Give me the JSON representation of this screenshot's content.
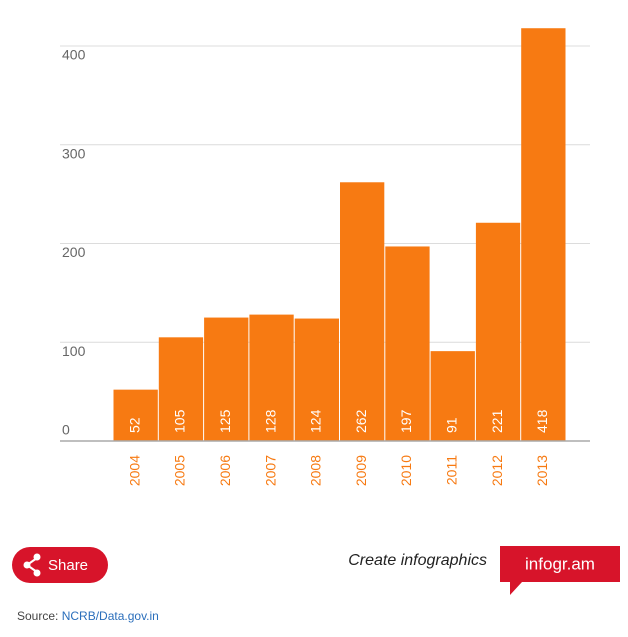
{
  "chart_data": {
    "type": "bar",
    "categories": [
      "2004",
      "2005",
      "2006",
      "2007",
      "2008",
      "2009",
      "2010",
      "2011",
      "2012",
      "2013"
    ],
    "values": [
      52,
      105,
      125,
      128,
      124,
      262,
      197,
      91,
      221,
      418
    ],
    "color": "#f77a12",
    "ylim": [
      0,
      440
    ],
    "yticks": [
      0,
      100,
      200,
      300,
      400
    ],
    "grid": true
  },
  "footer": {
    "share": "Share",
    "tagline": "Create infographics",
    "brand": "infogr.am",
    "source_label": "Source:",
    "source_link": "NCRB/Data.gov.in"
  }
}
